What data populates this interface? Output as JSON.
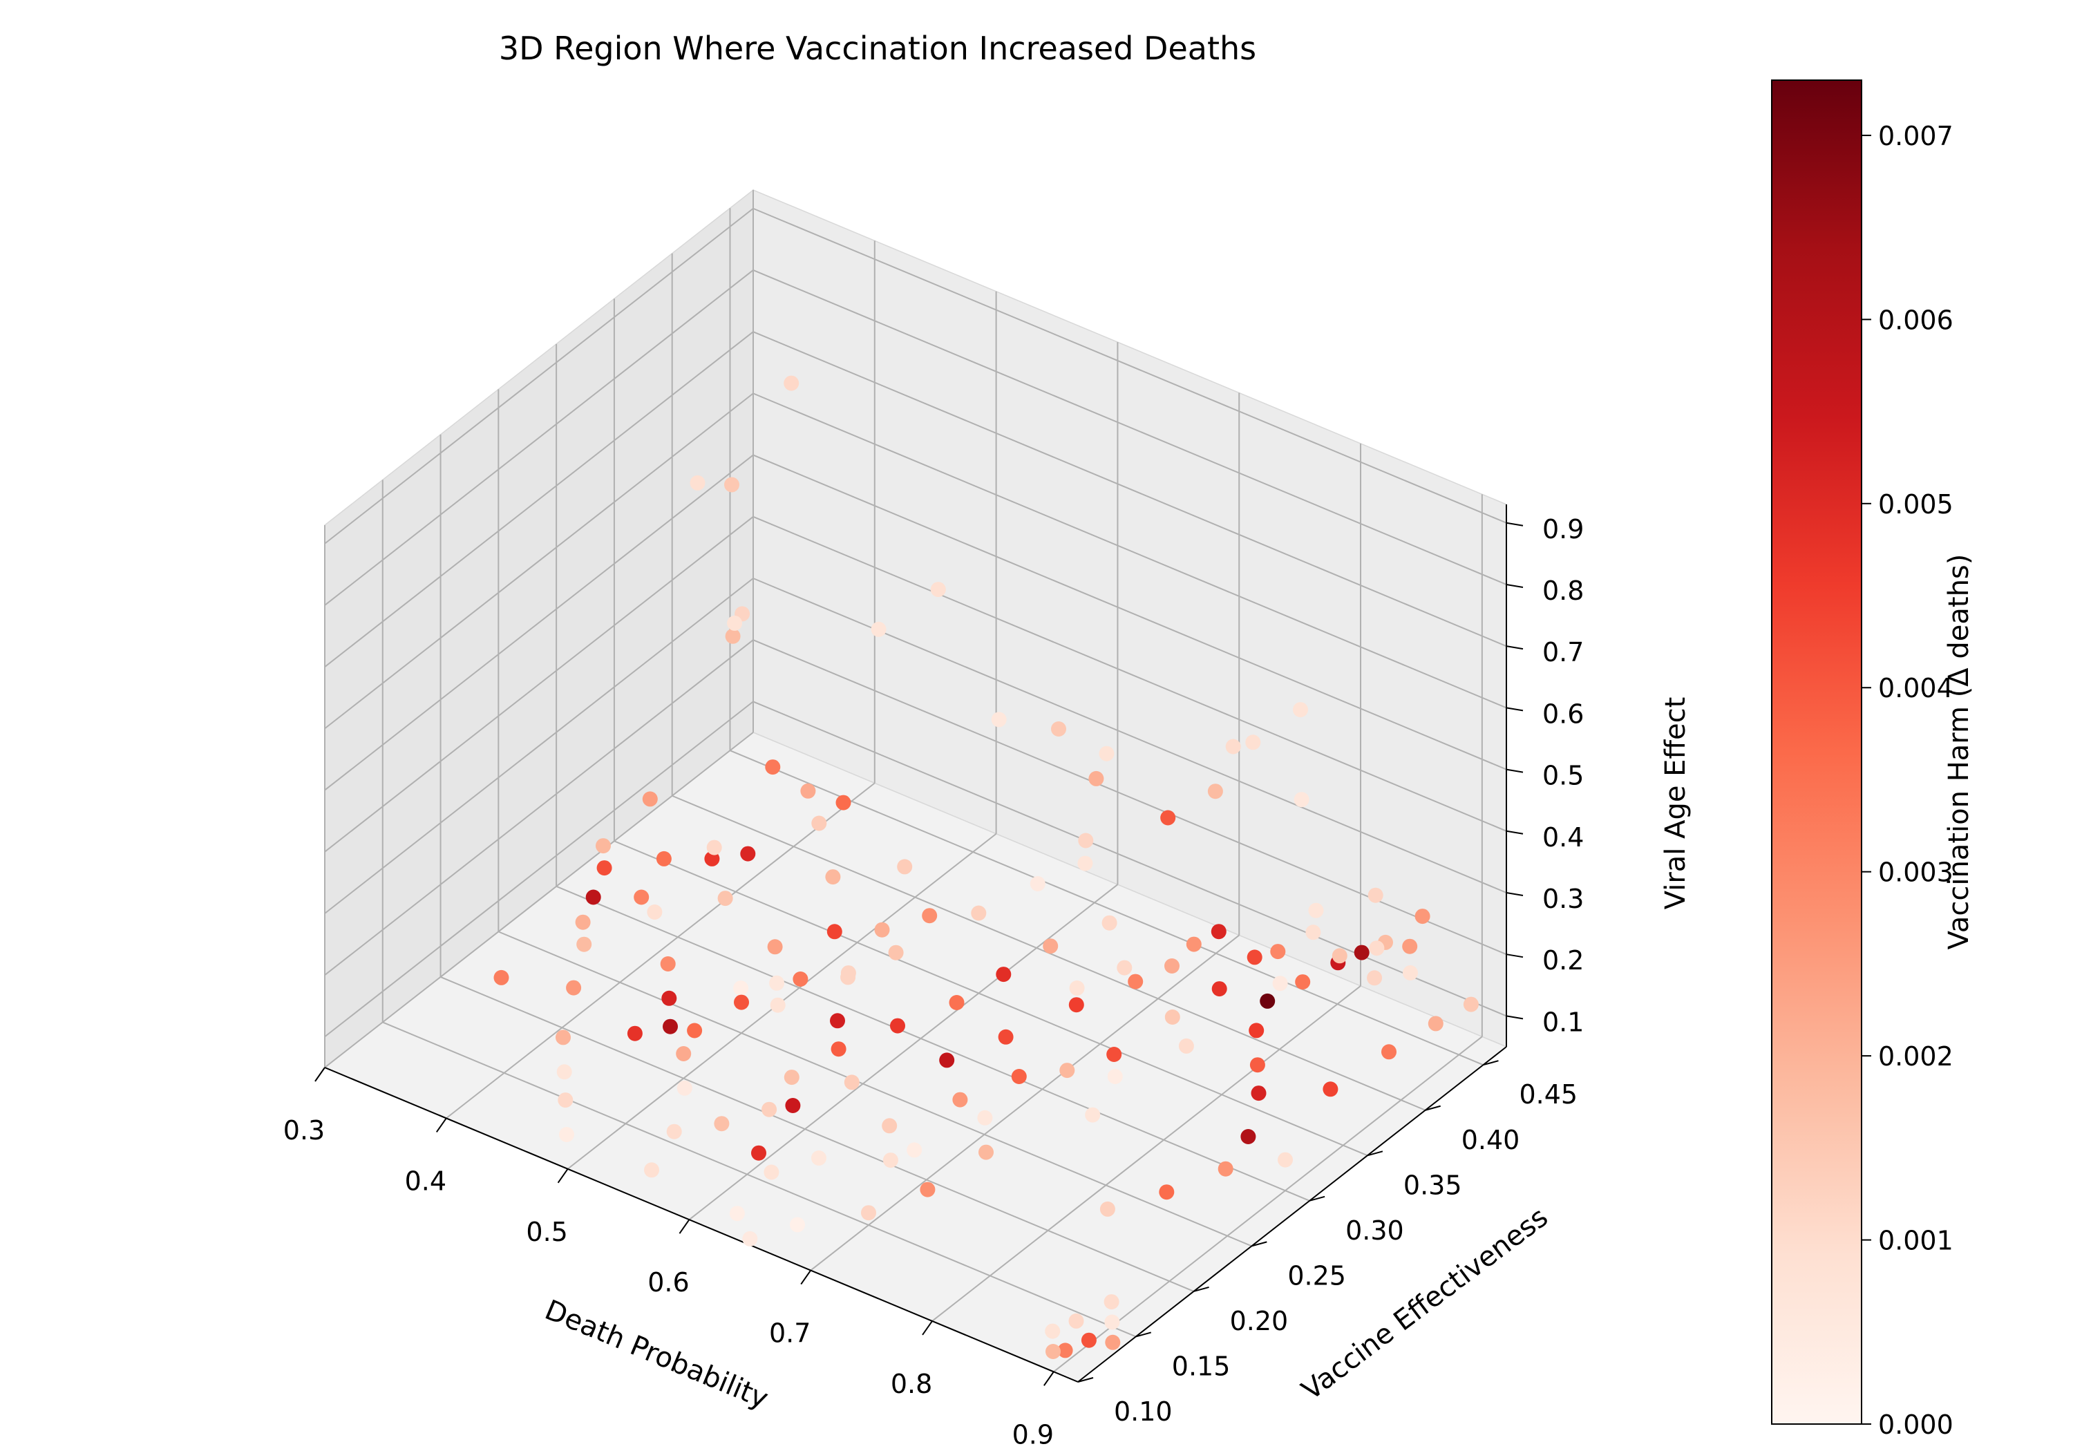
{
  "chart_data": {
    "type": "scatter",
    "projection": "3d",
    "title": "3D Region Where Vaccination Increased Deaths",
    "xlabel": "Death Probability",
    "ylabel": "Vaccine Effectiveness",
    "zlabel": "Viral Age Effect",
    "xlim": [
      0.3,
      0.92
    ],
    "ylim": [
      0.1,
      0.47
    ],
    "zlim": [
      0.05,
      0.93
    ],
    "xticks": [
      "0.3",
      "0.4",
      "0.5",
      "0.6",
      "0.7",
      "0.8",
      "0.9"
    ],
    "yticks": [
      "0.10",
      "0.15",
      "0.20",
      "0.25",
      "0.30",
      "0.35",
      "0.40",
      "0.45"
    ],
    "zticks": [
      "0.1",
      "0.2",
      "0.3",
      "0.4",
      "0.5",
      "0.6",
      "0.7",
      "0.8",
      "0.9"
    ],
    "grid": true,
    "colormap": "Reds",
    "colorbar": {
      "label": "Vaccination Harm (Δ deaths)",
      "range": [
        0.0,
        0.0073
      ],
      "ticks": [
        "0.000",
        "0.001",
        "0.002",
        "0.003",
        "0.004",
        "0.005",
        "0.006",
        "0.007"
      ]
    },
    "points": [
      [
        0.31,
        0.45,
        0.28,
        0.0012
      ],
      [
        0.33,
        0.42,
        0.55,
        0.0015
      ],
      [
        0.34,
        0.38,
        0.62,
        0.0009
      ],
      [
        0.36,
        0.44,
        0.71,
        0.0011
      ],
      [
        0.32,
        0.36,
        0.12,
        0.0025
      ],
      [
        0.31,
        0.33,
        0.08,
        0.0019
      ],
      [
        0.35,
        0.4,
        0.35,
        0.0018
      ],
      [
        0.38,
        0.37,
        0.44,
        0.0008
      ],
      [
        0.33,
        0.31,
        0.09,
        0.0042
      ],
      [
        0.34,
        0.29,
        0.08,
        0.0058
      ],
      [
        0.36,
        0.33,
        0.1,
        0.0035
      ],
      [
        0.37,
        0.3,
        0.09,
        0.0031
      ],
      [
        0.39,
        0.34,
        0.11,
        0.0047
      ],
      [
        0.41,
        0.35,
        0.12,
        0.0051
      ],
      [
        0.42,
        0.32,
        0.1,
        0.0016
      ],
      [
        0.44,
        0.38,
        0.15,
        0.0014
      ],
      [
        0.4,
        0.28,
        0.12,
        0.0009
      ],
      [
        0.43,
        0.26,
        0.09,
        0.0029
      ],
      [
        0.45,
        0.24,
        0.08,
        0.0052
      ],
      [
        0.47,
        0.22,
        0.08,
        0.0061
      ],
      [
        0.46,
        0.2,
        0.09,
        0.0048
      ],
      [
        0.49,
        0.22,
        0.09,
        0.0036
      ],
      [
        0.5,
        0.25,
        0.1,
        0.0041
      ],
      [
        0.52,
        0.28,
        0.11,
        0.0033
      ],
      [
        0.48,
        0.3,
        0.1,
        0.0024
      ],
      [
        0.51,
        0.32,
        0.12,
        0.0044
      ],
      [
        0.53,
        0.34,
        0.11,
        0.0021
      ],
      [
        0.55,
        0.36,
        0.12,
        0.0028
      ],
      [
        0.54,
        0.3,
        0.1,
        0.0012
      ],
      [
        0.56,
        0.27,
        0.09,
        0.0053
      ],
      [
        0.58,
        0.25,
        0.09,
        0.0039
      ],
      [
        0.6,
        0.28,
        0.1,
        0.0047
      ],
      [
        0.57,
        0.22,
        0.08,
        0.0017
      ],
      [
        0.59,
        0.2,
        0.08,
        0.0055
      ],
      [
        0.61,
        0.23,
        0.09,
        0.0014
      ],
      [
        0.62,
        0.31,
        0.11,
        0.0035
      ],
      [
        0.63,
        0.34,
        0.12,
        0.0049
      ],
      [
        0.64,
        0.37,
        0.13,
        0.0022
      ],
      [
        0.66,
        0.4,
        0.14,
        0.0011
      ],
      [
        0.65,
        0.27,
        0.1,
        0.0057
      ],
      [
        0.67,
        0.3,
        0.11,
        0.0043
      ],
      [
        0.68,
        0.25,
        0.09,
        0.0026
      ],
      [
        0.7,
        0.28,
        0.1,
        0.0038
      ],
      [
        0.69,
        0.34,
        0.12,
        0.0045
      ],
      [
        0.71,
        0.37,
        0.13,
        0.0031
      ],
      [
        0.72,
        0.41,
        0.14,
        0.0027
      ],
      [
        0.73,
        0.22,
        0.09,
        0.0019
      ],
      [
        0.74,
        0.32,
        0.11,
        0.0042
      ],
      [
        0.75,
        0.36,
        0.12,
        0.0015
      ],
      [
        0.76,
        0.39,
        0.13,
        0.0048
      ],
      [
        0.77,
        0.43,
        0.14,
        0.003
      ],
      [
        0.78,
        0.45,
        0.15,
        0.0009
      ],
      [
        0.79,
        0.4,
        0.12,
        0.0072
      ],
      [
        0.8,
        0.42,
        0.13,
        0.0034
      ],
      [
        0.81,
        0.44,
        0.14,
        0.0055
      ],
      [
        0.82,
        0.45,
        0.15,
        0.0063
      ],
      [
        0.83,
        0.46,
        0.16,
        0.0018
      ],
      [
        0.84,
        0.44,
        0.14,
        0.0012
      ],
      [
        0.85,
        0.46,
        0.17,
        0.0025
      ],
      [
        0.86,
        0.45,
        0.15,
        0.0008
      ],
      [
        0.8,
        0.38,
        0.11,
        0.0046
      ],
      [
        0.82,
        0.36,
        0.1,
        0.0039
      ],
      [
        0.84,
        0.34,
        0.1,
        0.0052
      ],
      [
        0.86,
        0.31,
        0.09,
        0.0061
      ],
      [
        0.88,
        0.36,
        0.11,
        0.0044
      ],
      [
        0.89,
        0.4,
        0.12,
        0.0033
      ],
      [
        0.9,
        0.43,
        0.13,
        0.0021
      ],
      [
        0.91,
        0.45,
        0.14,
        0.0015
      ],
      [
        0.87,
        0.28,
        0.09,
        0.0027
      ],
      [
        0.85,
        0.25,
        0.08,
        0.0036
      ],
      [
        0.83,
        0.22,
        0.08,
        0.0013
      ],
      [
        0.9,
        0.3,
        0.1,
        0.0009
      ],
      [
        0.88,
        0.12,
        0.07,
        0.0008
      ],
      [
        0.89,
        0.13,
        0.08,
        0.0011
      ],
      [
        0.9,
        0.11,
        0.07,
        0.0032
      ],
      [
        0.91,
        0.12,
        0.08,
        0.0041
      ],
      [
        0.89,
        0.11,
        0.06,
        0.0019
      ],
      [
        0.91,
        0.14,
        0.08,
        0.0006
      ],
      [
        0.92,
        0.13,
        0.07,
        0.0024
      ],
      [
        0.9,
        0.15,
        0.09,
        0.001
      ],
      [
        0.72,
        0.18,
        0.08,
        0.0028
      ],
      [
        0.7,
        0.15,
        0.07,
        0.0012
      ],
      [
        0.68,
        0.19,
        0.08,
        0.0009
      ],
      [
        0.66,
        0.21,
        0.09,
        0.0014
      ],
      [
        0.64,
        0.17,
        0.08,
        0.0006
      ],
      [
        0.62,
        0.15,
        0.07,
        0.0008
      ],
      [
        0.6,
        0.16,
        0.07,
        0.0049
      ],
      [
        0.58,
        0.19,
        0.08,
        0.0013
      ],
      [
        0.56,
        0.17,
        0.07,
        0.0017
      ],
      [
        0.54,
        0.15,
        0.07,
        0.001
      ],
      [
        0.52,
        0.18,
        0.08,
        0.0005
      ],
      [
        0.5,
        0.2,
        0.09,
        0.0022
      ],
      [
        0.76,
        0.3,
        0.12,
        0.0004
      ],
      [
        0.77,
        0.27,
        0.11,
        0.0007
      ],
      [
        0.79,
        0.33,
        0.15,
        0.001
      ],
      [
        0.81,
        0.39,
        0.18,
        0.0005
      ],
      [
        0.78,
        0.44,
        0.38,
        0.0006
      ],
      [
        0.74,
        0.44,
        0.44,
        0.0009
      ],
      [
        0.76,
        0.46,
        0.48,
        0.0008
      ],
      [
        0.83,
        0.4,
        0.3,
        0.0007
      ],
      [
        0.86,
        0.42,
        0.32,
        0.0012
      ],
      [
        0.88,
        0.4,
        0.28,
        0.001
      ],
      [
        0.87,
        0.45,
        0.25,
        0.0026
      ],
      [
        0.84,
        0.41,
        0.22,
        0.0016
      ],
      [
        0.8,
        0.36,
        0.6,
        0.001
      ],
      [
        0.55,
        0.42,
        0.35,
        0.0006
      ],
      [
        0.58,
        0.44,
        0.33,
        0.0015
      ],
      [
        0.61,
        0.45,
        0.3,
        0.0008
      ],
      [
        0.63,
        0.42,
        0.32,
        0.0021
      ],
      [
        0.65,
        0.39,
        0.28,
        0.0012
      ],
      [
        0.67,
        0.44,
        0.26,
        0.004
      ],
      [
        0.69,
        0.46,
        0.29,
        0.0018
      ],
      [
        0.47,
        0.4,
        0.46,
        0.0007
      ],
      [
        0.5,
        0.42,
        0.52,
        0.0009
      ],
      [
        0.44,
        0.34,
        0.3,
        0.0033
      ],
      [
        0.45,
        0.36,
        0.24,
        0.0022
      ],
      [
        0.46,
        0.38,
        0.2,
        0.0036
      ],
      [
        0.43,
        0.3,
        0.22,
        0.0011
      ],
      [
        0.6,
        0.35,
        0.18,
        0.0013
      ],
      [
        0.62,
        0.38,
        0.2,
        0.0005
      ],
      [
        0.64,
        0.4,
        0.22,
        0.0007
      ],
      [
        0.57,
        0.31,
        0.15,
        0.0016
      ],
      [
        0.52,
        0.37,
        0.16,
        0.0014
      ],
      [
        0.48,
        0.35,
        0.14,
        0.0019
      ],
      [
        0.7,
        0.33,
        0.17,
        0.0008
      ],
      [
        0.72,
        0.35,
        0.19,
        0.0011
      ],
      [
        0.74,
        0.37,
        0.18,
        0.0022
      ],
      [
        0.75,
        0.4,
        0.2,
        0.0051
      ],
      [
        0.77,
        0.41,
        0.16,
        0.0043
      ],
      [
        0.73,
        0.29,
        0.12,
        0.0019
      ],
      [
        0.71,
        0.24,
        0.1,
        0.0006
      ],
      [
        0.69,
        0.2,
        0.09,
        0.0004
      ],
      [
        0.67,
        0.12,
        0.07,
        0.0002
      ],
      [
        0.65,
        0.1,
        0.06,
        0.0005
      ],
      [
        0.63,
        0.11,
        0.07,
        0.0003
      ],
      [
        0.55,
        0.12,
        0.06,
        0.0009
      ],
      [
        0.4,
        0.21,
        0.1,
        0.0026
      ],
      [
        0.38,
        0.24,
        0.11,
        0.0018
      ],
      [
        0.36,
        0.26,
        0.1,
        0.0021
      ],
      [
        0.35,
        0.2,
        0.09,
        0.0032
      ],
      [
        0.42,
        0.18,
        0.08,
        0.002
      ],
      [
        0.44,
        0.16,
        0.07,
        0.0007
      ],
      [
        0.46,
        0.14,
        0.07,
        0.0011
      ],
      [
        0.48,
        0.12,
        0.06,
        0.0004
      ],
      [
        0.53,
        0.25,
        0.12,
        0.0008
      ],
      [
        0.55,
        0.29,
        0.13,
        0.0012
      ],
      [
        0.51,
        0.27,
        0.11,
        0.0006
      ],
      [
        0.49,
        0.26,
        0.1,
        0.0003
      ]
    ]
  }
}
